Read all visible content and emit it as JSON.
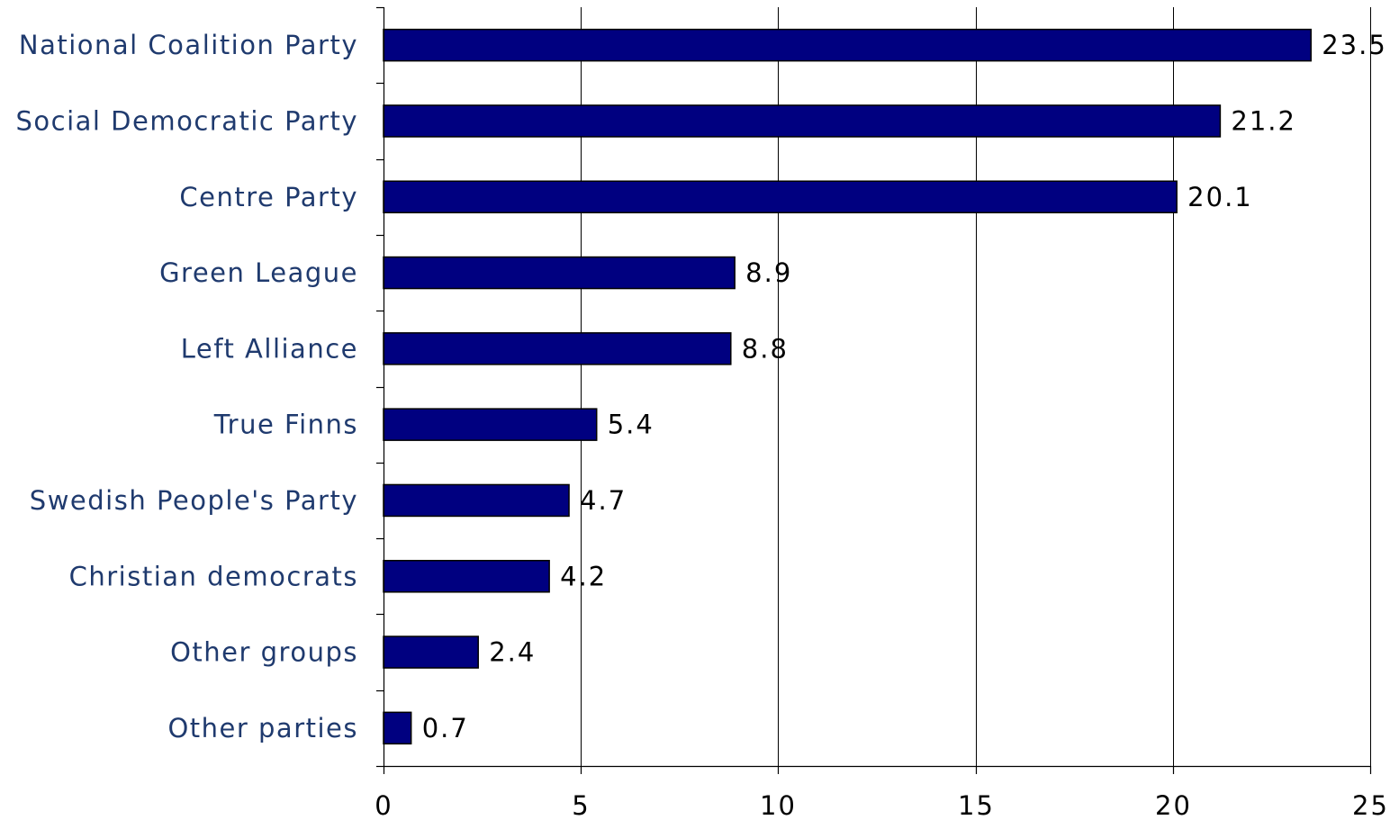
{
  "chart_data": {
    "type": "bar",
    "orientation": "horizontal",
    "title": "",
    "xlabel": "",
    "ylabel": "",
    "categories": [
      "National Coalition Party",
      "Social Democratic Party",
      "Centre Party",
      "Green League",
      "Left Alliance",
      "True Finns",
      "Swedish People's Party",
      "Christian democrats",
      "Other groups",
      "Other parties"
    ],
    "values": [
      23.5,
      21.2,
      20.1,
      8.9,
      8.8,
      5.4,
      4.7,
      4.2,
      2.4,
      0.7
    ],
    "value_labels": [
      "23.5",
      "21.2",
      "20.1",
      "8.9",
      "8.8",
      "5.4",
      "4.7",
      "4.2",
      "2.4",
      "0.7"
    ],
    "xlim": [
      0,
      25
    ],
    "xticks": [
      0,
      5,
      10,
      15,
      20,
      25
    ],
    "xtick_labels": [
      "0",
      "5",
      "10",
      "15",
      "20",
      "25"
    ],
    "grid": "vertical",
    "legend": "none",
    "bar_color": "#000080",
    "label_color": "#1f3a6e"
  }
}
